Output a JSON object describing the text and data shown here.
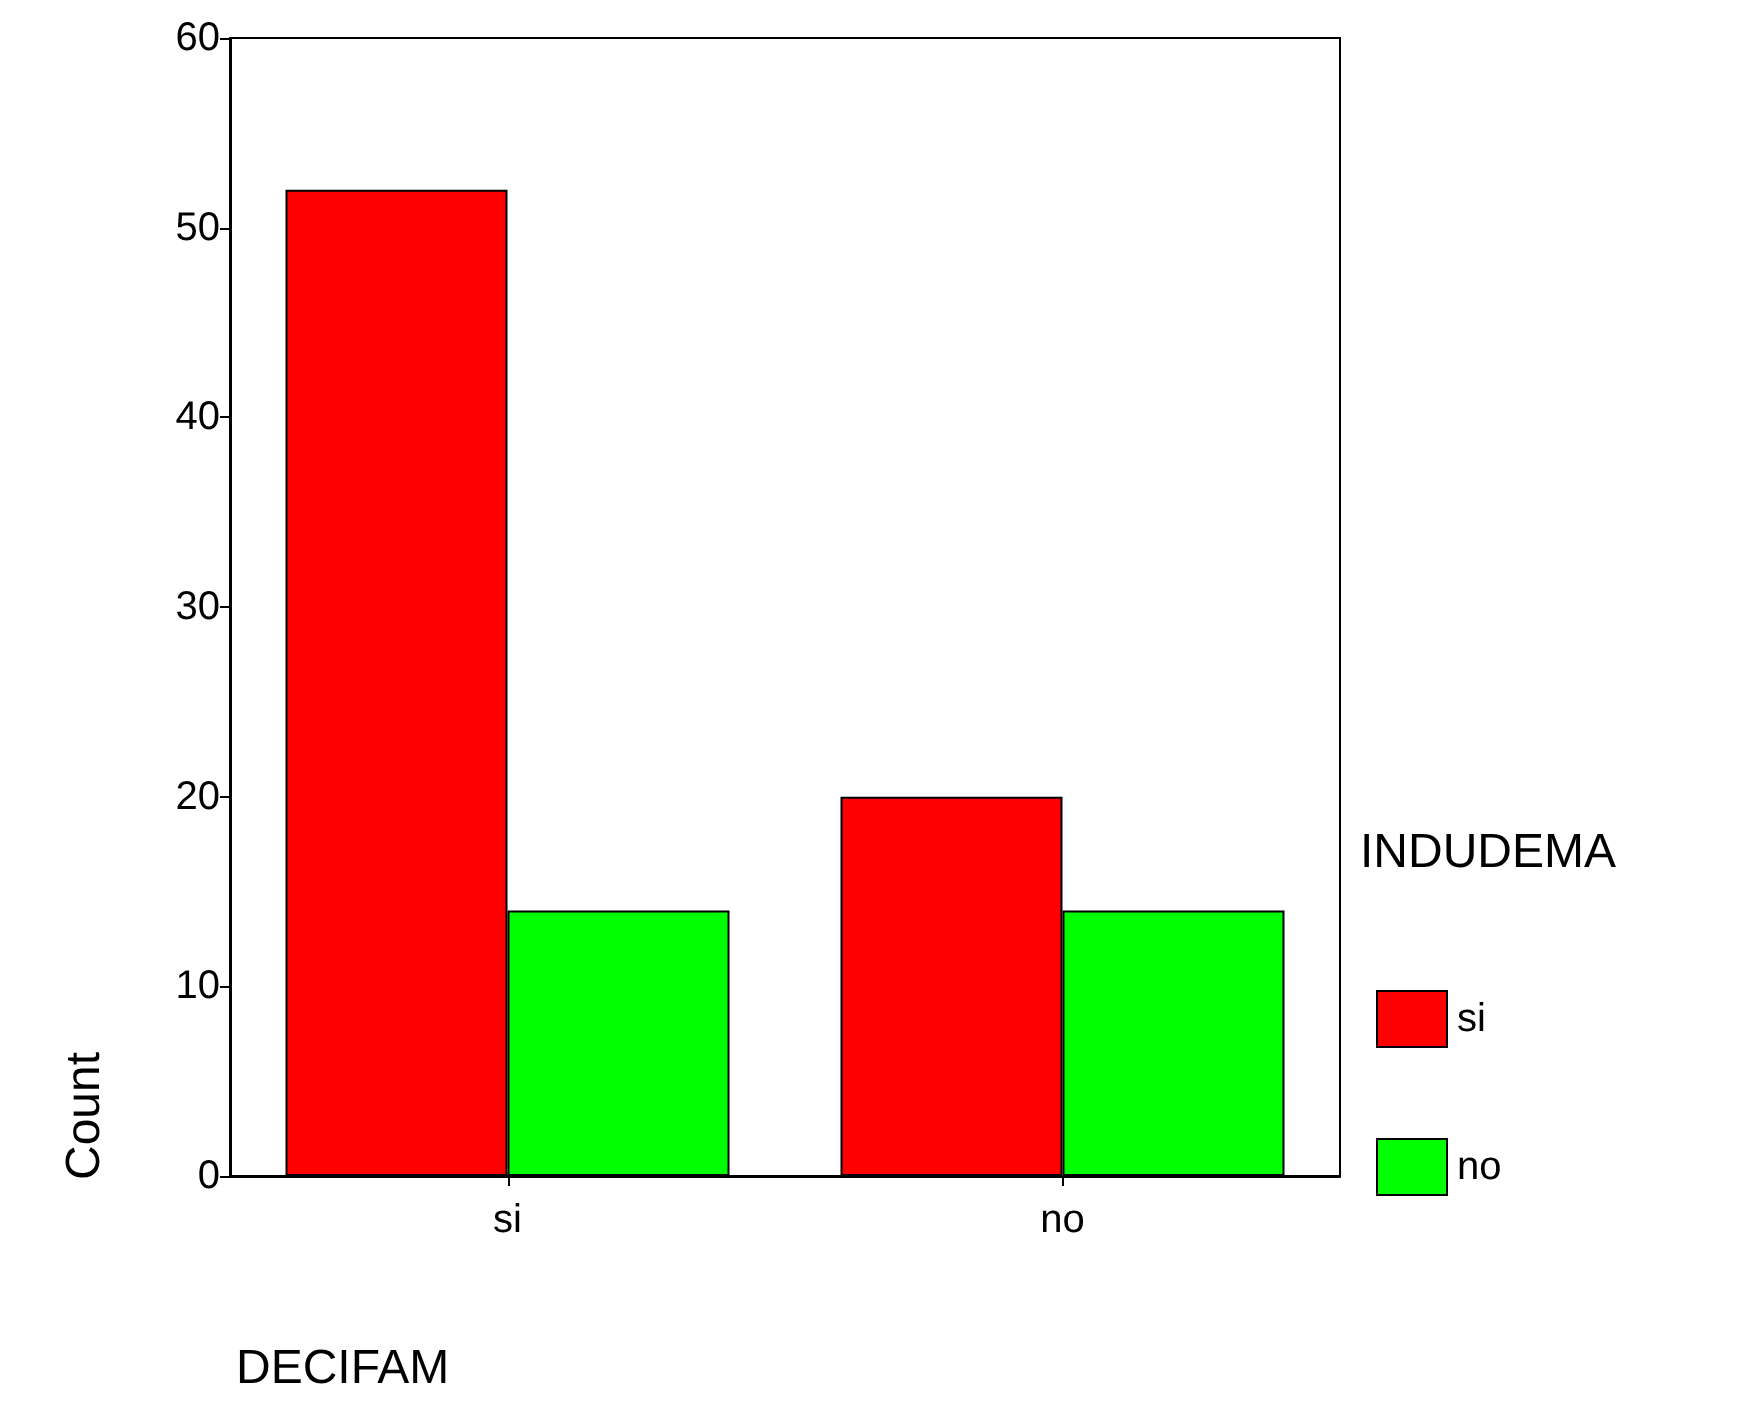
{
  "chart_data": {
    "type": "bar",
    "xlabel": "DECIFAM",
    "ylabel": "Count",
    "legend_title": "INDUDEMA",
    "categories": [
      "si",
      "no"
    ],
    "series": [
      {
        "name": "si",
        "color": "#ff0000",
        "values": [
          52,
          20
        ]
      },
      {
        "name": "no",
        "color": "#00ff00",
        "values": [
          14,
          14
        ]
      }
    ],
    "ylim": [
      0,
      60
    ],
    "yticks": [
      0,
      10,
      20,
      30,
      40,
      50,
      60
    ],
    "grid": false,
    "legend": "right"
  }
}
